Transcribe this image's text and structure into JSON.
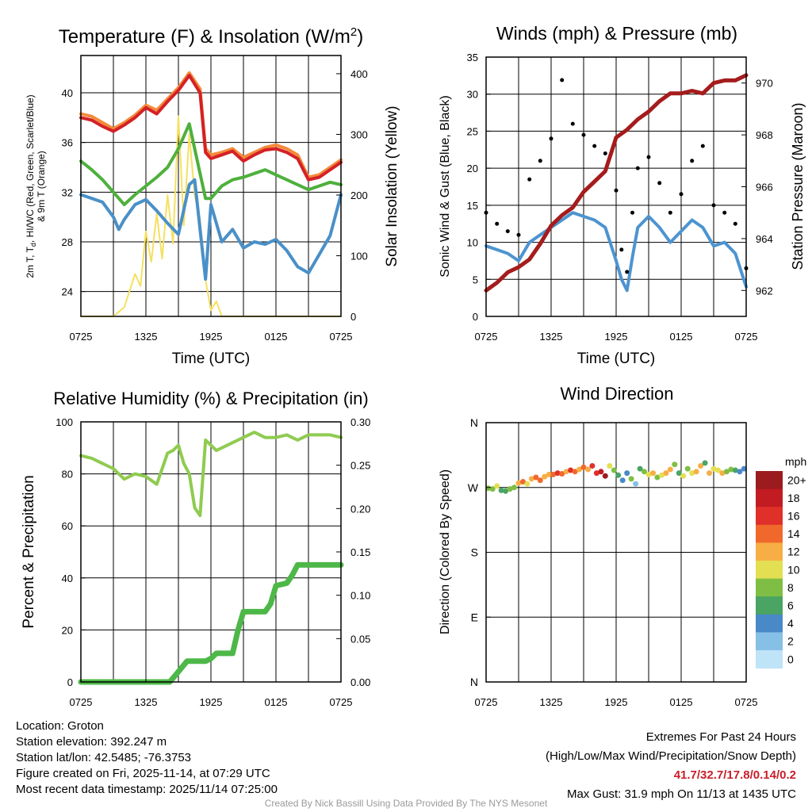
{
  "info": {
    "location": "Location: Groton",
    "elevation": "Station elevation: 392.247 m",
    "latlon": "Station lat/lon: 42.5485; -76.3753",
    "created": "Figure created on Fri, 2025-11-14, at 07:29 UTC",
    "recent": "Most recent data timestamp: 2025/11/14 07:25:00"
  },
  "extremes": {
    "title": "Extremes For Past 24 Hours",
    "subtitle": "(High/Low/Max Wind/Precipitation/Snow Depth)",
    "values": "41.7/32.7/17.8/0.14/0.2",
    "gust": "Max Gust: 31.9 mph On 11/13 at 1435 UTC"
  },
  "credit": "Created By Nick Bassill Using Data Provided By The NYS Mesonet",
  "colors": {
    "temp": "#d42126",
    "tempOrange": "#f38a3a",
    "dew": "#4a90c8",
    "temp9": "#4eb03c",
    "insol": "#f5e060",
    "gust": "#000000",
    "wind": "#4d94d0",
    "pressure": "#a51c1c",
    "rh": "#8fcb50",
    "precip": "#4db848"
  },
  "chart_data": [
    {
      "type": "line",
      "title": "Temperature (F) & Insolation (W/m",
      "title_sup": "2",
      "title_end": ")",
      "xlabel": "Time (UTC)",
      "ylabel_l1": "2m T, T",
      "ylabel_sub": "d",
      "ylabel_l1b": ", HI/WC (Red, Green, Scarlet/Blue)",
      "ylabel_l2": "& 9m T (Orange)",
      "ylabel_right": "Solar Insolation (Yellow)",
      "x_ticks": [
        "0725",
        "1325",
        "1925",
        "0125",
        "0725"
      ],
      "xlim": [
        0,
        24
      ],
      "ylim_left": [
        22,
        43
      ],
      "yticks_left": [
        24,
        28,
        32,
        36,
        40
      ],
      "ylim_right": [
        0,
        430
      ],
      "yticks_right": [
        0,
        100,
        200,
        300,
        400
      ],
      "series": [
        {
          "name": "9m T",
          "axis": "left",
          "x": [
            0,
            1,
            2,
            3,
            4,
            5,
            6,
            7,
            8,
            9,
            10,
            11,
            11.5,
            12,
            13,
            14,
            15,
            16,
            17,
            18,
            19,
            20,
            21,
            22,
            23,
            24
          ],
          "values": [
            38.3,
            38.1,
            37.6,
            37.1,
            37.6,
            38.2,
            39.0,
            38.6,
            39.5,
            40.4,
            41.6,
            40.3,
            35.5,
            35.0,
            35.2,
            35.5,
            34.8,
            35.2,
            35.6,
            35.8,
            35.5,
            35.0,
            33.2,
            33.4,
            34.0,
            34.6
          ]
        },
        {
          "name": "2m T",
          "axis": "left",
          "x": [
            0,
            1,
            2,
            3,
            4,
            5,
            6,
            7,
            8,
            9,
            10,
            11,
            11.5,
            12,
            13,
            14,
            15,
            16,
            17,
            18,
            19,
            20,
            21,
            22,
            23,
            24
          ],
          "values": [
            38.0,
            37.8,
            37.3,
            36.9,
            37.4,
            38.0,
            38.8,
            38.3,
            39.3,
            40.2,
            41.4,
            40.0,
            35.2,
            34.7,
            35.0,
            35.3,
            34.5,
            35.0,
            35.4,
            35.5,
            35.2,
            34.7,
            33.0,
            33.2,
            33.8,
            34.4
          ]
        },
        {
          "name": "2m Td",
          "axis": "left",
          "x": [
            0,
            1,
            2,
            3,
            3.5,
            4,
            5,
            6,
            7,
            8,
            9,
            10,
            10.5,
            11,
            11.5,
            12,
            13,
            14,
            15,
            16,
            17,
            18,
            19,
            20,
            21,
            22,
            23,
            24
          ],
          "values": [
            31.8,
            31.5,
            31.2,
            30.0,
            29.0,
            29.8,
            31.0,
            31.4,
            30.5,
            29.5,
            28.6,
            32.6,
            33.0,
            29.0,
            25.0,
            31.0,
            28.0,
            29.0,
            27.5,
            28.0,
            27.8,
            28.2,
            27.3,
            26.0,
            25.5,
            27.0,
            28.5,
            31.8
          ]
        },
        {
          "name": "HI/WC",
          "axis": "left",
          "x": [
            0,
            1,
            2,
            3,
            4,
            5,
            6,
            7,
            8,
            9,
            10,
            11,
            11.5,
            12,
            13,
            14,
            15,
            16,
            17,
            18,
            19,
            20,
            21,
            22,
            23,
            24
          ],
          "values": [
            34.5,
            33.8,
            33.0,
            32.0,
            31.0,
            31.8,
            32.5,
            33.2,
            34.0,
            35.5,
            37.5,
            33.5,
            31.5,
            31.5,
            32.5,
            33.0,
            33.2,
            33.5,
            33.8,
            33.4,
            33.0,
            32.6,
            32.2,
            32.5,
            32.8,
            32.6
          ]
        },
        {
          "name": "Solar Insolation",
          "axis": "right",
          "x": [
            0,
            3,
            4,
            5,
            5.5,
            6,
            6.5,
            7,
            7.5,
            8,
            8.5,
            9,
            9.5,
            10,
            10.5,
            11,
            11.5,
            12,
            12.5,
            13,
            14,
            24
          ],
          "values": [
            0,
            0,
            15,
            70,
            50,
            140,
            90,
            170,
            95,
            200,
            120,
            330,
            150,
            300,
            200,
            160,
            60,
            10,
            25,
            0,
            0,
            0
          ]
        }
      ]
    },
    {
      "type": "line",
      "title": "Winds (mph) & Pressure (mb)",
      "xlabel": "Time (UTC)",
      "ylabel_left": "Sonic Wind & Gust (Blue, Black)",
      "ylabel_right": "Station Pressure (Maroon)",
      "x_ticks": [
        "0725",
        "1325",
        "1925",
        "0125",
        "0725"
      ],
      "xlim": [
        0,
        24
      ],
      "ylim_left": [
        0,
        35
      ],
      "yticks_left": [
        0,
        5,
        10,
        15,
        20,
        25,
        30,
        35
      ],
      "ylim_right": [
        961,
        971
      ],
      "yticks_right": [
        962,
        964,
        966,
        968,
        970
      ],
      "series": [
        {
          "name": "Sonic Wind",
          "axis": "left",
          "x": [
            0,
            1,
            2,
            3,
            4,
            5,
            6,
            7,
            8,
            9,
            10,
            11,
            12,
            12.5,
            13,
            13.5,
            14,
            15,
            16,
            17,
            18,
            19,
            20,
            21,
            22,
            23,
            24
          ],
          "values": [
            9.5,
            9.0,
            8.5,
            7.5,
            10.0,
            11.0,
            12.0,
            13.0,
            14.0,
            13.5,
            13.0,
            12.0,
            7.5,
            5.0,
            3.5,
            8.0,
            12.0,
            13.5,
            12.0,
            10.0,
            11.5,
            13.0,
            12.0,
            9.5,
            10.0,
            8.5,
            4.0
          ]
        },
        {
          "name": "Gust",
          "axis": "left",
          "x": [
            0,
            1,
            2,
            3,
            4,
            5,
            6,
            7,
            8,
            9,
            10,
            11,
            12,
            12.5,
            13,
            13.5,
            14,
            15,
            16,
            17,
            18,
            19,
            20,
            21,
            22,
            23,
            24
          ],
          "values": [
            14.0,
            12.5,
            11.5,
            11.0,
            18.5,
            21.0,
            24.0,
            31.9,
            26.0,
            24.5,
            23.0,
            22.0,
            17.0,
            9.0,
            6.0,
            14.0,
            20.0,
            21.5,
            18.0,
            14.0,
            16.5,
            21.0,
            23.0,
            15.0,
            14.0,
            12.5,
            6.5
          ]
        },
        {
          "name": "Station Pressure",
          "axis": "right",
          "x": [
            0,
            1,
            2,
            3,
            4,
            5,
            6,
            7,
            8,
            9,
            10,
            11,
            12,
            13,
            14,
            15,
            16,
            17,
            18,
            19,
            20,
            21,
            22,
            23,
            24
          ],
          "values": [
            962.0,
            962.3,
            962.7,
            962.9,
            963.2,
            963.8,
            964.5,
            964.9,
            965.2,
            965.8,
            966.2,
            966.6,
            967.9,
            968.2,
            968.6,
            968.9,
            969.3,
            969.6,
            969.6,
            969.7,
            969.6,
            970.0,
            970.1,
            970.1,
            970.3
          ]
        }
      ]
    },
    {
      "type": "line",
      "title": "Relative Humidity (%) & Precipitation (in)",
      "ylabel_left": "Percent & Precipitation",
      "x_ticks": [
        "0725",
        "1325",
        "1925",
        "0125",
        "0725"
      ],
      "xlim": [
        0,
        24
      ],
      "ylim_left": [
        0,
        100
      ],
      "yticks_left": [
        0,
        20,
        40,
        60,
        80,
        100
      ],
      "ylim_right": [
        0,
        0.3
      ],
      "yticks_right": [
        "0.00",
        "0.05",
        "0.10",
        "0.15",
        "0.20",
        "0.25",
        "0.30"
      ],
      "series": [
        {
          "name": "Relative Humidity",
          "axis": "left",
          "x": [
            0,
            1,
            2,
            3,
            4,
            5,
            6,
            7,
            8,
            8.5,
            9,
            9.5,
            10,
            10.5,
            11,
            11.5,
            12,
            12.5,
            13,
            14,
            15,
            16,
            17,
            18,
            19,
            20,
            21,
            22,
            23,
            24
          ],
          "values": [
            87,
            86,
            84,
            82,
            78,
            80,
            79,
            76,
            88,
            89,
            91,
            84,
            80,
            67,
            64,
            93,
            91,
            89,
            90,
            92,
            94,
            96,
            94,
            94,
            95,
            93,
            95,
            95,
            95,
            94
          ]
        },
        {
          "name": "Precipitation",
          "axis": "left",
          "x": [
            0,
            8.2,
            8.8,
            9.2,
            9.8,
            10.0,
            11.0,
            11.5,
            12.0,
            12.5,
            13.0,
            14.0,
            14.5,
            15.0,
            16.0,
            17.0,
            17.5,
            18.0,
            19.0,
            19.5,
            20.0,
            21.0,
            24.0
          ],
          "values": [
            0,
            0,
            3,
            5,
            8,
            8,
            8,
            8,
            9,
            11,
            11,
            11,
            20,
            27,
            27,
            27,
            30,
            37,
            38,
            41,
            45,
            45,
            45
          ]
        }
      ]
    },
    {
      "type": "scatter",
      "title": "Wind Direction",
      "ylabel_left": "Direction (Colored By Speed)",
      "x_ticks": [
        "0725",
        "1325",
        "1925",
        "0125",
        "0725"
      ],
      "xlim": [
        0,
        24
      ],
      "ylim_left": [
        0,
        360
      ],
      "yticks_labels": [
        "N",
        "E",
        "S",
        "W",
        "N"
      ],
      "yticks_values": [
        0,
        90,
        180,
        270,
        360
      ],
      "colorbar_title": "mph",
      "colorbar_labels": [
        "0",
        "2",
        "4",
        "6",
        "8",
        "10",
        "12",
        "14",
        "16",
        "18",
        "20+"
      ],
      "colorbar_colors": [
        "#bfe3f7",
        "#86c0e6",
        "#4a89c8",
        "#4aa463",
        "#7fbe44",
        "#e3df52",
        "#f7ae45",
        "#f1682c",
        "#e0302a",
        "#c21b22",
        "#9b1b1e"
      ],
      "x": [
        0.2,
        0.6,
        1.0,
        1.4,
        1.8,
        2.2,
        2.6,
        3.0,
        3.4,
        3.8,
        4.2,
        4.6,
        5.0,
        5.4,
        5.8,
        6.2,
        6.6,
        7.0,
        7.4,
        7.8,
        8.2,
        8.6,
        9.0,
        9.4,
        9.8,
        10.2,
        10.6,
        11.0,
        11.4,
        11.8,
        12.2,
        12.6,
        13.0,
        13.4,
        13.8,
        14.2,
        14.6,
        15.0,
        15.4,
        15.8,
        16.2,
        16.6,
        17.0,
        17.4,
        17.8,
        18.2,
        18.6,
        19.0,
        19.4,
        19.8,
        20.2,
        20.6,
        21.0,
        21.4,
        21.8,
        22.2,
        22.6,
        23.0,
        23.4,
        23.8
      ],
      "direction": [
        269,
        268,
        272,
        266,
        265,
        268,
        270,
        276,
        278,
        275,
        282,
        284,
        280,
        285,
        288,
        288,
        290,
        289,
        292,
        294,
        292,
        295,
        298,
        295,
        300,
        290,
        292,
        286,
        300,
        294,
        287,
        280,
        290,
        282,
        275,
        296,
        292,
        288,
        290,
        284,
        287,
        290,
        295,
        302,
        290,
        286,
        296,
        290,
        292,
        300,
        304,
        290,
        296,
        294,
        290,
        292,
        295,
        294,
        292,
        296
      ],
      "speed": [
        8,
        9,
        10,
        6,
        7,
        8,
        9,
        12,
        14,
        10,
        12,
        15,
        14,
        12,
        13,
        14,
        16,
        15,
        12,
        16,
        14,
        13,
        15,
        12,
        17,
        16,
        18,
        20,
        10,
        9,
        6,
        4,
        5,
        8,
        3,
        7,
        8,
        10,
        12,
        9,
        11,
        13,
        12,
        8,
        6,
        10,
        9,
        11,
        12,
        13,
        7,
        12,
        10,
        11,
        13,
        9,
        8,
        6,
        5,
        4
      ]
    }
  ]
}
